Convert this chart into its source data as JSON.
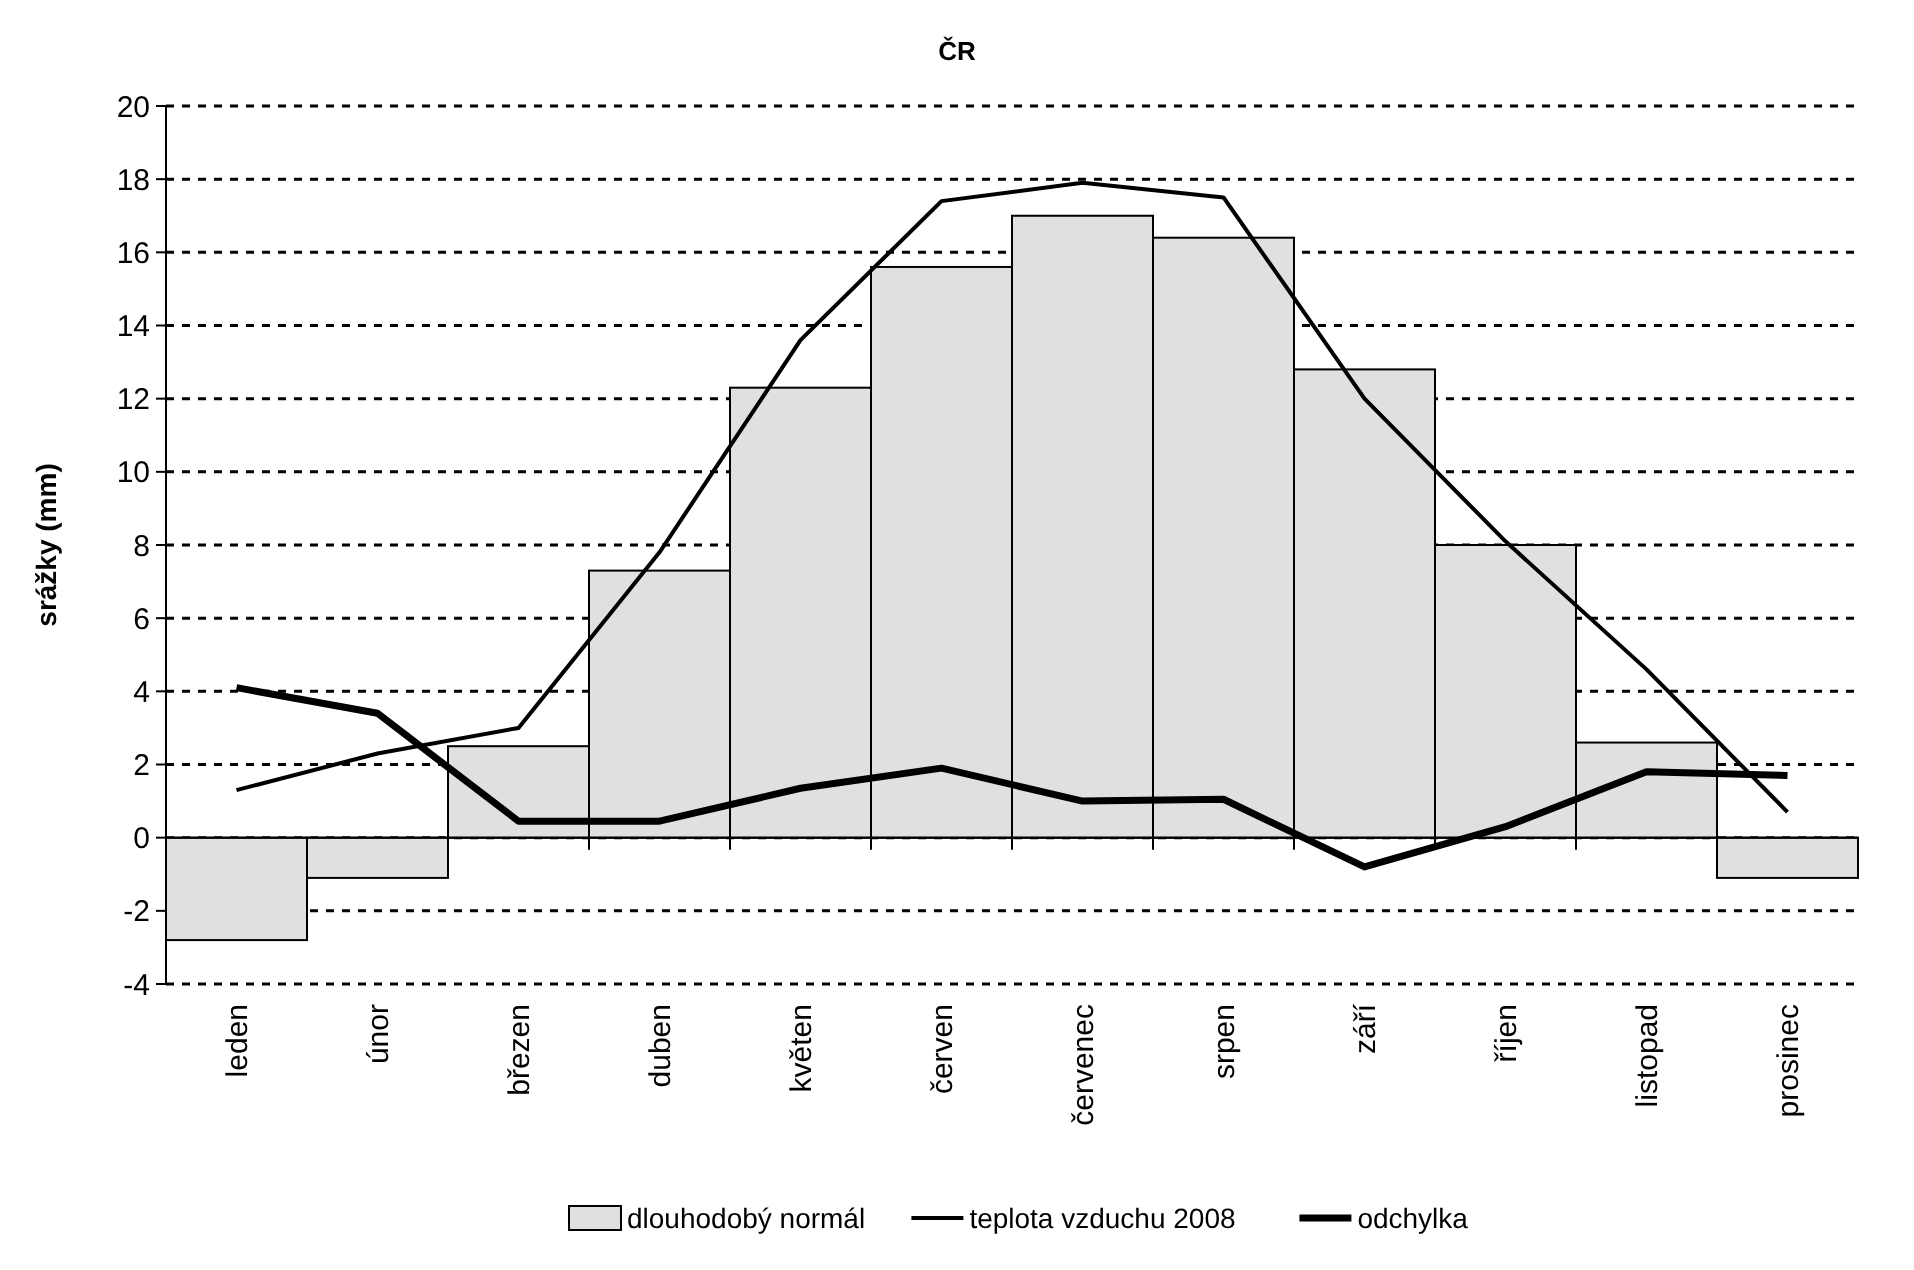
{
  "chart_data": {
    "type": "bar",
    "title": "ČR",
    "ylabel": "srážky (mm)",
    "categories": [
      "leden",
      "únor",
      "březen",
      "duben",
      "květen",
      "červen",
      "červenec",
      "srpen",
      "září",
      "říjen",
      "listopad",
      "prosinec"
    ],
    "series": [
      {
        "name": "dlouhodobý normál",
        "color": "#e0e0e0",
        "values": [
          -2.8,
          -1.1,
          2.5,
          7.3,
          12.3,
          15.6,
          17,
          16.4,
          12.8,
          8,
          2.6,
          -1.1
        ]
      },
      {
        "name": "teplota vzduchu 2008",
        "type": "line",
        "color": "#000000",
        "values": [
          1.3,
          2.3,
          3,
          7.8,
          13.6,
          17.4,
          17.9,
          17.5,
          12,
          8.1,
          4.6,
          0.7
        ]
      },
      {
        "name": "odchylka",
        "type": "line",
        "color": "#000000",
        "values": [
          4.1,
          3.4,
          0.45,
          0.45,
          1.35,
          1.9,
          1,
          1.05,
          -0.8,
          0.3,
          1.8,
          1.7
        ]
      }
    ],
    "ylim": [
      -4,
      20
    ],
    "yticks": [
      -4,
      -2,
      0,
      2,
      4,
      6,
      8,
      10,
      12,
      14,
      16,
      18,
      20
    ],
    "grid": "y",
    "legend": "bottom",
    "line_style": "solid",
    "marker": "none"
  }
}
